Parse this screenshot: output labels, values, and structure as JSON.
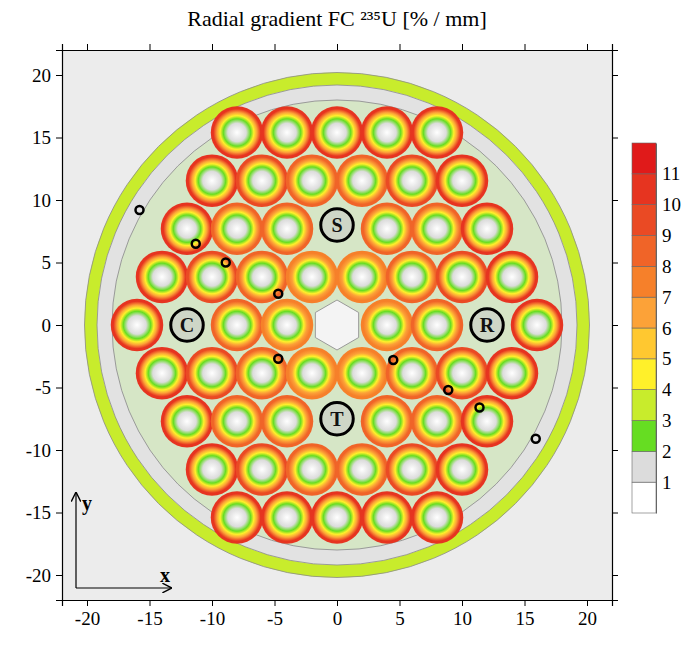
{
  "chart_data": {
    "type": "heatmap",
    "title": "Radial gradient FC ²³⁵U  [% / mm]",
    "xlabel": "x",
    "ylabel": "y",
    "xlim": [
      -22,
      22
    ],
    "ylim": [
      -22,
      22
    ],
    "xticks": [
      -20,
      -15,
      -10,
      -5,
      0,
      5,
      10,
      15,
      20
    ],
    "yticks": [
      -20,
      -15,
      -10,
      -5,
      0,
      5,
      10,
      15,
      20
    ],
    "pins": {
      "x": [
        -8,
        -4,
        0,
        4,
        8,
        -10,
        -6,
        -2,
        2,
        6,
        10,
        -12,
        -8,
        -4,
        4,
        8,
        12,
        -14,
        -10,
        -6,
        -2,
        2,
        6,
        10,
        14,
        -16,
        -8,
        -4,
        4,
        8,
        16,
        -14,
        -10,
        -6,
        -2,
        2,
        6,
        10,
        14,
        -12,
        -8,
        -4,
        4,
        8,
        12,
        -10,
        -6,
        -2,
        2,
        6,
        10,
        -8,
        -4,
        0,
        4,
        8
      ],
      "y": [
        15.4,
        15.4,
        15.4,
        15.4,
        15.4,
        11.55,
        11.55,
        11.55,
        11.55,
        11.55,
        11.55,
        7.7,
        7.7,
        7.7,
        7.7,
        7.7,
        7.7,
        3.85,
        3.85,
        3.85,
        3.85,
        3.85,
        3.85,
        3.85,
        3.85,
        0,
        0,
        0,
        0,
        0,
        0,
        -3.85,
        -3.85,
        -3.85,
        -3.85,
        -3.85,
        -3.85,
        -3.85,
        -3.85,
        -7.7,
        -7.7,
        -7.7,
        -7.7,
        -7.7,
        -7.7,
        -11.55,
        -11.55,
        -11.55,
        -11.55,
        -11.55,
        -11.55,
        -15.4,
        -15.4,
        -15.4,
        -15.4,
        -15.4
      ],
      "values": [
        10,
        10,
        10,
        10,
        10,
        10,
        9,
        8,
        8,
        9,
        10,
        10,
        8,
        8,
        8,
        8,
        10,
        10,
        9,
        8,
        7,
        7,
        8,
        9,
        10,
        10,
        8,
        7,
        7,
        8,
        10,
        10,
        9,
        8,
        7,
        7,
        8,
        9,
        10,
        10,
        8,
        8,
        8,
        8,
        10,
        10,
        9,
        8,
        8,
        9,
        10,
        10,
        10,
        10,
        10,
        10
      ]
    },
    "tube": {
      "inner_radius": 19.2,
      "outer_radius": 20.2,
      "value": 3
    },
    "channels": [
      {
        "label": "S",
        "x": 0,
        "y": 8
      },
      {
        "label": "C",
        "x": -12,
        "y": 0
      },
      {
        "label": "R",
        "x": 12,
        "y": 0
      },
      {
        "label": "T",
        "x": 0,
        "y": -7.5
      }
    ],
    "detectors": {
      "x": [
        -15.8,
        -11.3,
        -8.9,
        -4.7,
        -4.7,
        4.5,
        8.9,
        11.4,
        15.9
      ],
      "y": [
        9.2,
        6.5,
        5.0,
        2.5,
        -2.7,
        -2.8,
        -5.2,
        -6.6,
        -9.1
      ]
    },
    "colorbar": {
      "range": [
        0,
        12
      ],
      "ticks": [
        1,
        2,
        3,
        4,
        5,
        6,
        7,
        8,
        9,
        10,
        11
      ],
      "colors": [
        "#ffffff",
        "#dcdcdc",
        "#66dd22",
        "#c8ec2c",
        "#fff02a",
        "#ffc830",
        "#fca238",
        "#f6802a",
        "#f06428",
        "#ea4a24",
        "#e63420",
        "#e01a1a"
      ]
    }
  }
}
